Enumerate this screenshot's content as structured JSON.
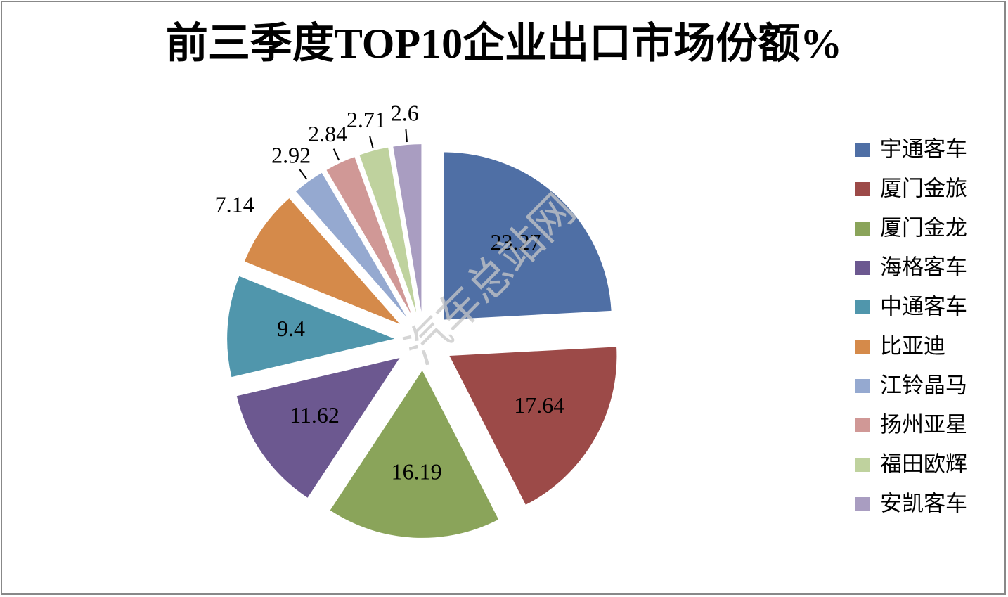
{
  "chart_data": {
    "type": "pie",
    "title": "前三季度TOP10企业出口市场份额%",
    "categories": [
      "宇通客车",
      "厦门金旅",
      "厦门金龙",
      "海格客车",
      "中通客车",
      "比亚迪",
      "江铃晶马",
      "扬州亚星",
      "福田欧辉",
      "安凯客车"
    ],
    "values": [
      23.27,
      17.64,
      16.19,
      11.62,
      9.4,
      7.14,
      2.92,
      2.84,
      2.71,
      2.6
    ],
    "colors": [
      "#4f6fa5",
      "#9c4a48",
      "#8aa45a",
      "#6c5890",
      "#5096ac",
      "#d58a4a",
      "#95a9d0",
      "#d09896",
      "#bfd29e",
      "#a99dc1"
    ],
    "legend": "right",
    "watermark": "汽车总站网"
  }
}
